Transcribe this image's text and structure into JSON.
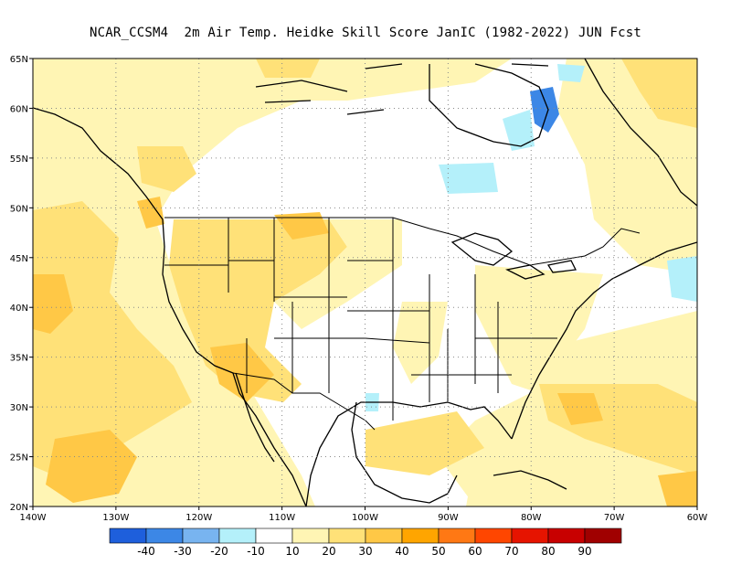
{
  "title": "NCAR_CCSM4  2m Air Temp. Heidke Skill Score JanIC (1982-2022) JUN Fcst",
  "map": {
    "lon_range": [
      -140,
      -60
    ],
    "lat_range": [
      20,
      65
    ],
    "lon_ticks": [
      "140W",
      "130W",
      "120W",
      "110W",
      "100W",
      "90W",
      "80W",
      "70W",
      "60W"
    ],
    "lat_ticks": [
      "65N",
      "60N",
      "55N",
      "50N",
      "45N",
      "40N",
      "35N",
      "30N",
      "25N",
      "20N"
    ],
    "gridlines": "dotted"
  },
  "colorbar": {
    "colors": [
      "#1e5fdc",
      "#3c87e6",
      "#78b4f0",
      "#b4f0fa",
      "#ffffff",
      "#fff5b4",
      "#ffe178",
      "#ffc846",
      "#ffa500",
      "#ff7814",
      "#ff4600",
      "#e61400",
      "#c80000",
      "#a00000"
    ],
    "labels": [
      "-40",
      "-30",
      "-20",
      "-10",
      "10",
      "20",
      "30",
      "40",
      "50",
      "60",
      "70",
      "80",
      "90"
    ]
  },
  "legend_colors": {
    "land_outline": "#000000",
    "water_white": "#ffffff"
  }
}
